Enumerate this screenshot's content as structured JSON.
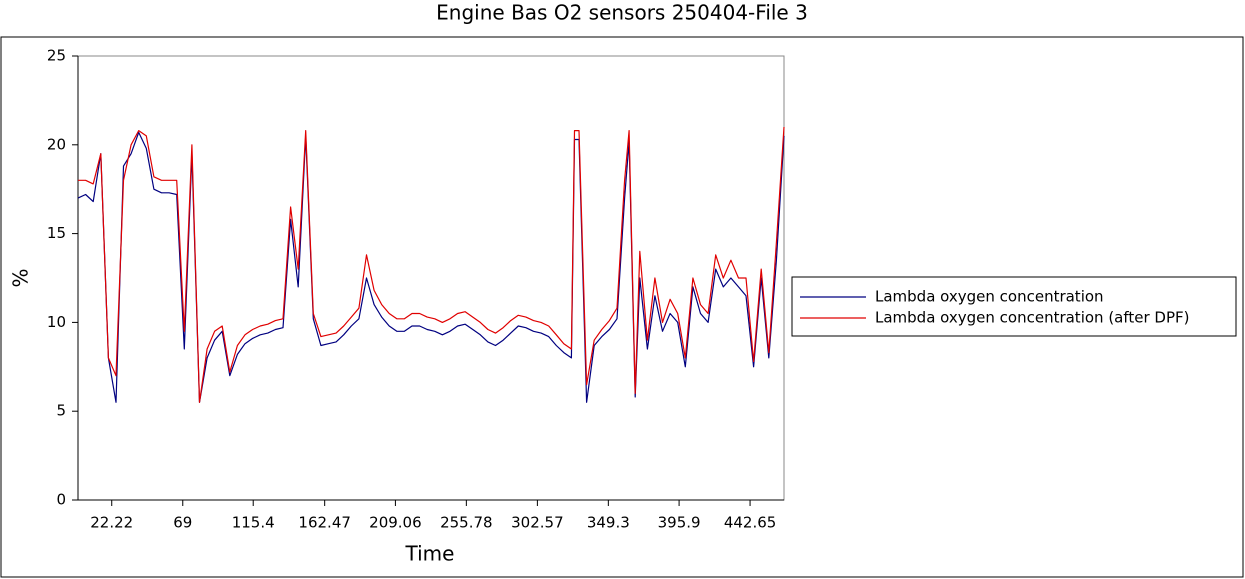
{
  "chart_data": {
    "type": "line",
    "title": "Engine Bas    O2 sensors 250404-File 3",
    "xlabel": "Time",
    "ylabel": "%",
    "x": [
      0,
      5,
      10,
      15,
      20,
      25,
      30,
      35,
      40,
      45,
      50,
      55,
      60,
      65,
      70,
      75,
      80,
      85,
      90,
      95,
      100,
      105,
      110,
      115,
      120,
      125,
      130,
      135,
      140,
      145,
      150,
      155,
      160,
      165,
      170,
      175,
      180,
      185,
      190,
      195,
      200,
      205,
      210,
      215,
      220,
      225,
      230,
      235,
      240,
      245,
      250,
      255,
      260,
      265,
      270,
      275,
      280,
      285,
      290,
      295,
      300,
      305,
      310,
      315,
      320,
      325,
      327,
      330,
      335,
      340,
      345,
      350,
      355,
      360,
      363,
      367,
      370,
      375,
      380,
      385,
      390,
      395,
      400,
      405,
      410,
      415,
      420,
      425,
      430,
      435,
      440,
      445,
      450,
      455,
      460,
      465
    ],
    "series": [
      {
        "name": "Lambda oxygen concentration",
        "color": "#000080",
        "values": [
          17,
          17.2,
          16.8,
          19.5,
          8,
          5.5,
          18.8,
          19.5,
          20.7,
          19.8,
          17.5,
          17.3,
          17.3,
          17.2,
          8.5,
          19.5,
          5.5,
          8,
          9,
          9.5,
          7,
          8.2,
          8.8,
          9.1,
          9.3,
          9.4,
          9.6,
          9.7,
          15.8,
          12,
          20.5,
          10.2,
          8.7,
          8.8,
          8.9,
          9.3,
          9.8,
          10.2,
          12.5,
          11,
          10.3,
          9.8,
          9.5,
          9.5,
          9.8,
          9.8,
          9.6,
          9.5,
          9.3,
          9.5,
          9.8,
          9.9,
          9.6,
          9.3,
          8.9,
          8.7,
          9,
          9.4,
          9.8,
          9.7,
          9.5,
          9.4,
          9.2,
          8.7,
          8.3,
          8,
          20.3,
          20.3,
          5.5,
          8.7,
          9.2,
          9.6,
          10.2,
          17,
          20.2,
          5.8,
          12.5,
          8.5,
          11.5,
          9.5,
          10.5,
          10,
          7.5,
          12,
          10.5,
          10,
          13,
          12,
          12.5,
          12,
          11.5,
          7.5,
          12.5,
          8,
          13.5,
          20.5
        ]
      },
      {
        "name": "Lambda oxygen concentration (after DPF)",
        "color": "#e00000",
        "values": [
          18,
          18,
          17.8,
          19.5,
          8,
          7,
          18,
          20,
          20.8,
          20.5,
          18.2,
          18,
          18,
          18,
          9.5,
          20,
          5.5,
          8.5,
          9.5,
          9.8,
          7.2,
          8.7,
          9.3,
          9.6,
          9.8,
          9.9,
          10.1,
          10.2,
          16.5,
          13,
          20.8,
          10.5,
          9.2,
          9.3,
          9.4,
          9.8,
          10.3,
          10.8,
          13.8,
          11.8,
          11,
          10.5,
          10.2,
          10.2,
          10.5,
          10.5,
          10.3,
          10.2,
          10,
          10.2,
          10.5,
          10.6,
          10.3,
          10,
          9.6,
          9.4,
          9.7,
          10.1,
          10.4,
          10.3,
          10.1,
          10,
          9.8,
          9.3,
          8.8,
          8.5,
          20.8,
          20.8,
          6.5,
          9,
          9.6,
          10.1,
          10.8,
          18,
          20.8,
          6,
          14,
          9,
          12.5,
          10,
          11.3,
          10.5,
          8,
          12.5,
          11,
          10.5,
          13.8,
          12.5,
          13.5,
          12.5,
          12.5,
          7.8,
          13,
          8.3,
          14.5,
          21
        ]
      }
    ],
    "xlim": [
      0,
      465
    ],
    "xticks": [
      22.22,
      69,
      115.4,
      162.47,
      209.06,
      255.78,
      302.57,
      349.3,
      395.9,
      442.65
    ],
    "ylim": [
      0,
      25
    ],
    "yticks": [
      0,
      5,
      10,
      15,
      20,
      25
    ],
    "grid": false,
    "legend": "right"
  }
}
